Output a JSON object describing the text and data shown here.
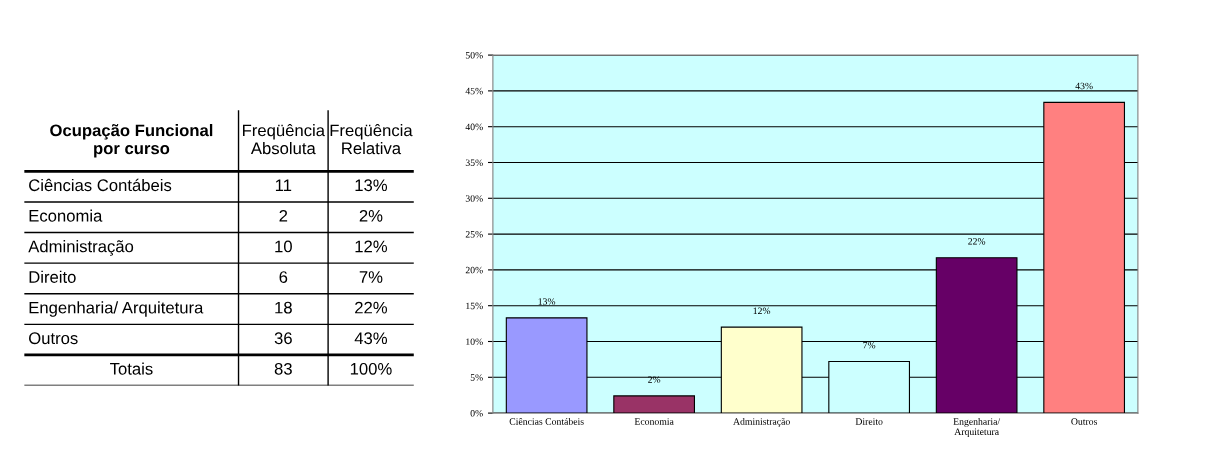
{
  "chart_data": [
    {
      "type": "other",
      "title": "Ocupação Funcional\npor curso",
      "categories": [
        "Ciências Contábeis",
        "Economia",
        "Administração",
        "Direito",
        "Engenharia/ Arquitetura",
        "Outros"
      ],
      "series": [
        {
          "name": "Freqüência\nAbsoluta",
          "values": [
            11,
            2,
            10,
            6,
            18,
            36
          ]
        }
      ],
      "data_labels": true,
      "annotations": [
        "Freqüência\nRelativa",
        "Totais",
        "83",
        "100%"
      ]
    },
    {
      "type": "bar",
      "categories": [
        "Ciências Contábeis",
        "Economia",
        "Administração",
        "Direito",
        "Engenharia/\nArquitetura",
        "Outros"
      ],
      "values": [
        13.3,
        2.4,
        12.0,
        7.2,
        21.7,
        43.4
      ],
      "value_labels": [
        "13%",
        "2%",
        "12%",
        "7%",
        "22%",
        "43%"
      ],
      "colors": [
        "#9999ff",
        "#993366",
        "#ffffcc",
        "#ccffff",
        "#660066",
        "#ff8080"
      ],
      "ylim": [
        0,
        50
      ],
      "yticks": [
        {
          "value": 0,
          "label": "0%"
        },
        {
          "value": 5,
          "label": "5%"
        },
        {
          "value": 10,
          "label": "10%"
        },
        {
          "value": 15,
          "label": "15%"
        },
        {
          "value": 20,
          "label": "20%"
        },
        {
          "value": 25,
          "label": "25%"
        },
        {
          "value": 30,
          "label": "30%"
        },
        {
          "value": 35,
          "label": "35%"
        },
        {
          "value": 40,
          "label": "40%"
        },
        {
          "value": 45,
          "label": "45%"
        },
        {
          "value": 50,
          "label": "50%"
        }
      ],
      "grid": "y"
    }
  ]
}
